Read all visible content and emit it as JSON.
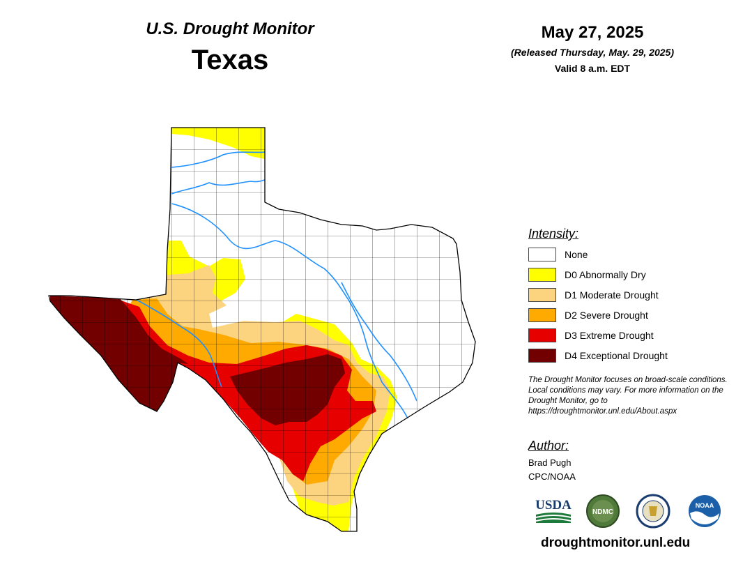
{
  "header": {
    "monitor_name": "U.S. Drought Monitor",
    "state": "Texas",
    "date": "May 27, 2025",
    "released": "(Released Thursday, May. 29, 2025)",
    "valid": "Valid 8 a.m. EDT"
  },
  "legend": {
    "title": "Intensity:",
    "items": [
      {
        "label": "None",
        "color": "#ffffff"
      },
      {
        "label": "D0 Abnormally Dry",
        "color": "#ffff00"
      },
      {
        "label": "D1 Moderate Drought",
        "color": "#fcd37f"
      },
      {
        "label": "D2 Severe Drought",
        "color": "#ffaa00"
      },
      {
        "label": "D3 Extreme Drought",
        "color": "#e60000"
      },
      {
        "label": "D4 Exceptional Drought",
        "color": "#730000"
      }
    ]
  },
  "disclaimer": "The Drought Monitor focuses on broad-scale conditions. Local conditions may vary. For more information on the Drought Monitor, go to https://droughtmonitor.unl.edu/About.aspx",
  "author": {
    "title": "Author:",
    "name": "Brad Pugh",
    "org": "CPC/NOAA"
  },
  "logos": {
    "usda": "USDA",
    "ndmc": "NDMC",
    "noaa": "NOAA"
  },
  "website": "droughtmonitor.unl.edu",
  "colors": {
    "river": "#1e90ff",
    "county_line": "#000000"
  }
}
